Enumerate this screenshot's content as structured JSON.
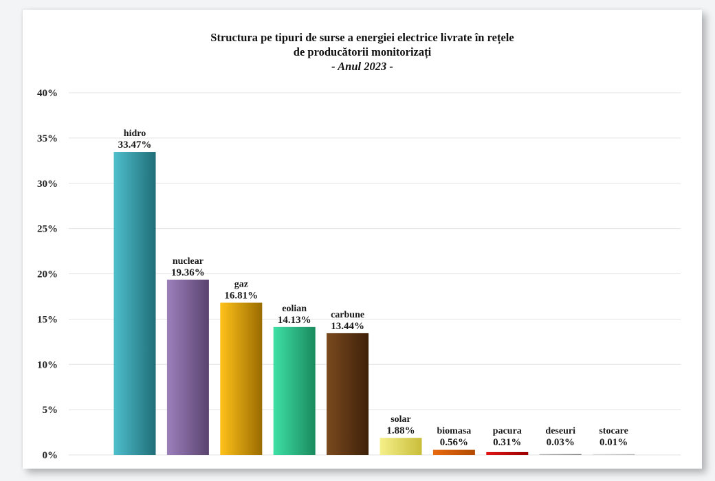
{
  "chart_data": {
    "type": "bar",
    "title": "Structura pe tipuri de surse a energiei electrice livrate în rețele de producătorii monitorizați",
    "title_lines": [
      "Structura pe tipuri de surse a energiei electrice livrate în rețele",
      "de producătorii monitorizați"
    ],
    "subtitle": "- Anul 2023 -",
    "categories": [
      "hidro",
      "nuclear",
      "gaz",
      "eolian",
      "carbune",
      "solar",
      "biomasa",
      "pacura",
      "deseuri",
      "stocare"
    ],
    "values": [
      33.47,
      19.36,
      16.81,
      14.13,
      13.44,
      1.88,
      0.56,
      0.31,
      0.03,
      0.01
    ],
    "value_labels": [
      "33.47%",
      "19.36%",
      "16.81%",
      "14.13%",
      "13.44%",
      "1.88%",
      "0.56%",
      "0.31%",
      "0.03%",
      "0.01%"
    ],
    "y_ticks": [
      "0%",
      "5%",
      "10%",
      "15%",
      "20%",
      "25%",
      "30%",
      "35%",
      "40%"
    ],
    "y_tick_values": [
      0,
      5,
      10,
      15,
      20,
      25,
      30,
      35,
      40
    ],
    "ylim": [
      0,
      40
    ],
    "xlabel": "",
    "ylabel": "",
    "grid": true,
    "legend": "none",
    "bar_colors": [
      [
        "#4fbfcc",
        "#1f6e78"
      ],
      [
        "#9c80bc",
        "#5a436f"
      ],
      [
        "#ffc21a",
        "#9a6b00"
      ],
      [
        "#3ee0a6",
        "#1a8a5e"
      ],
      [
        "#7a4a1f",
        "#3e2008"
      ],
      [
        "#f5f08a",
        "#c9bd3a"
      ],
      [
        "#e86a10",
        "#b24a00"
      ],
      [
        "#e01515",
        "#9a0000"
      ],
      [
        "#bcbcbc",
        "#8a8a8a"
      ],
      [
        "#dddddd",
        "#bbbbbb"
      ]
    ],
    "grid_color": "#e2e2e2"
  }
}
